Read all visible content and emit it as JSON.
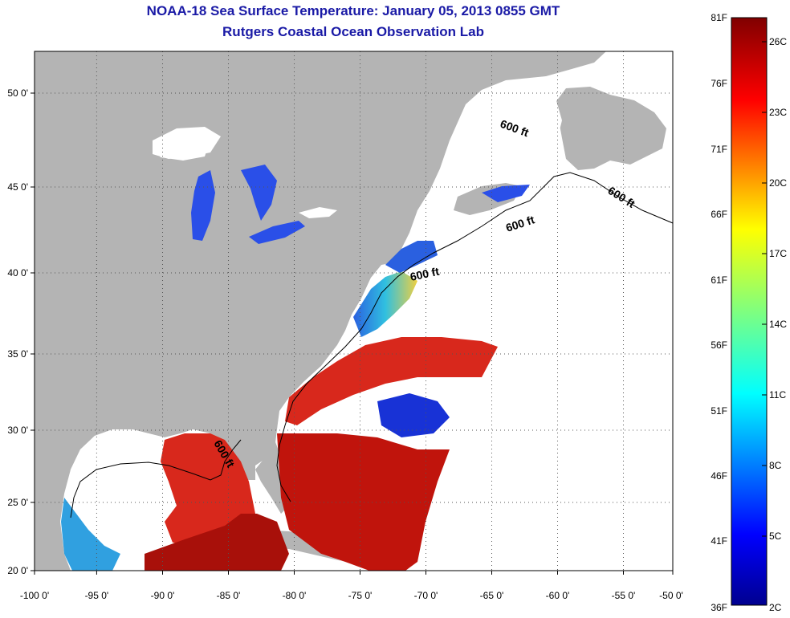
{
  "header": {
    "title": "NOAA-18 Sea Surface Temperature:  January 05, 2013 0855 GMT",
    "subtitle": "Rutgers Coastal Ocean Observation Lab"
  },
  "axes": {
    "lon_labels": [
      "-100 0'",
      "-95 0'",
      "-90 0'",
      "-85 0'",
      "-80 0'",
      "-75 0'",
      "-70 0'",
      "-65 0'",
      "-60 0'",
      "-55 0'",
      "-50 0'"
    ],
    "lat_labels": [
      "20 0'",
      "25 0'",
      "30 0'",
      "35 0'",
      "40 0'",
      "45 0'",
      "50 0'"
    ]
  },
  "depth_contour_label": "600 ft",
  "colorbar": {
    "fahrenheit": [
      "81F",
      "76F",
      "71F",
      "66F",
      "61F",
      "56F",
      "51F",
      "46F",
      "41F",
      "36F"
    ],
    "celsius": [
      "26C",
      "23C",
      "20C",
      "17C",
      "14C",
      "11C",
      "8C",
      "5C",
      "2C"
    ]
  },
  "colors": {
    "land": "#b4b4b4",
    "cloud": "#ffffff",
    "title": "#1a1aa6",
    "warm": "#c0140c",
    "cold": "#1832d6"
  }
}
